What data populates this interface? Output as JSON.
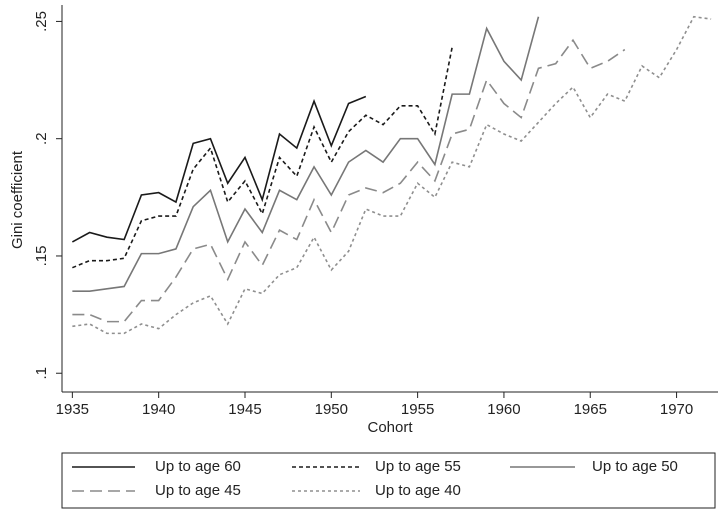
{
  "chart_data": {
    "type": "line",
    "x_label": "Cohort",
    "y_label": "Gini coefficient",
    "xlim": [
      1934.4,
      1972.4
    ],
    "ylim": [
      0.092,
      0.257
    ],
    "xticks": [
      1935,
      1940,
      1945,
      1950,
      1955,
      1960,
      1965,
      1970
    ],
    "yticks": [
      {
        "value": 0.1,
        "label": ".1"
      },
      {
        "value": 0.15,
        "label": ".15"
      },
      {
        "value": 0.2,
        "label": ".2"
      },
      {
        "value": 0.25,
        "label": ".25"
      }
    ],
    "grid": false,
    "legend": "bottom",
    "series": [
      {
        "name": "Up to age 60",
        "color": "#1a1a1a",
        "dash": "none",
        "x": [
          1935,
          1936,
          1937,
          1938,
          1939,
          1940,
          1941,
          1942,
          1943,
          1944,
          1945,
          1946,
          1947,
          1948,
          1949,
          1950,
          1951,
          1952
        ],
        "values": [
          0.156,
          0.16,
          0.158,
          0.157,
          0.176,
          0.177,
          0.173,
          0.198,
          0.2,
          0.181,
          0.192,
          0.174,
          0.202,
          0.196,
          0.216,
          0.197,
          0.215,
          0.218
        ]
      },
      {
        "name": "Up to age 55",
        "color": "#1a1a1a",
        "dash": "4,3",
        "x": [
          1935,
          1936,
          1937,
          1938,
          1939,
          1940,
          1941,
          1942,
          1943,
          1944,
          1945,
          1946,
          1947,
          1948,
          1949,
          1950,
          1951,
          1952,
          1953,
          1954,
          1955,
          1956,
          1957
        ],
        "values": [
          0.145,
          0.148,
          0.148,
          0.149,
          0.165,
          0.167,
          0.167,
          0.187,
          0.196,
          0.173,
          0.182,
          0.168,
          0.192,
          0.184,
          0.205,
          0.19,
          0.203,
          0.21,
          0.206,
          0.214,
          0.214,
          0.202,
          0.239
        ]
      },
      {
        "name": "Up to age 50",
        "color": "#777777",
        "dash": "none",
        "x": [
          1935,
          1936,
          1937,
          1938,
          1939,
          1940,
          1941,
          1942,
          1943,
          1944,
          1945,
          1946,
          1947,
          1948,
          1949,
          1950,
          1951,
          1952,
          1953,
          1954,
          1955,
          1956,
          1957,
          1958,
          1959,
          1960,
          1961,
          1962
        ],
        "values": [
          0.135,
          0.135,
          0.136,
          0.137,
          0.151,
          0.151,
          0.153,
          0.171,
          0.178,
          0.156,
          0.17,
          0.16,
          0.178,
          0.174,
          0.188,
          0.176,
          0.19,
          0.195,
          0.19,
          0.2,
          0.2,
          0.189,
          0.219,
          0.219,
          0.247,
          0.233,
          0.225,
          0.252
        ]
      },
      {
        "name": "Up to age 45",
        "color": "#8a8a8a",
        "dash": "12,6",
        "x": [
          1935,
          1936,
          1937,
          1938,
          1939,
          1940,
          1941,
          1942,
          1943,
          1944,
          1945,
          1946,
          1947,
          1948,
          1949,
          1950,
          1951,
          1952,
          1953,
          1954,
          1955,
          1956,
          1957,
          1958,
          1959,
          1960,
          1961,
          1962,
          1963,
          1964,
          1965,
          1966,
          1967
        ],
        "values": [
          0.125,
          0.125,
          0.122,
          0.122,
          0.131,
          0.131,
          0.141,
          0.153,
          0.155,
          0.14,
          0.156,
          0.146,
          0.161,
          0.157,
          0.174,
          0.16,
          0.176,
          0.179,
          0.177,
          0.181,
          0.19,
          0.182,
          0.202,
          0.204,
          0.225,
          0.215,
          0.209,
          0.23,
          0.232,
          0.242,
          0.23,
          0.233,
          0.238
        ]
      },
      {
        "name": "Up to age 40",
        "color": "#8f8f8f",
        "dash": "3,3",
        "x": [
          1935,
          1936,
          1937,
          1938,
          1939,
          1940,
          1941,
          1942,
          1943,
          1944,
          1945,
          1946,
          1947,
          1948,
          1949,
          1950,
          1951,
          1952,
          1953,
          1954,
          1955,
          1956,
          1957,
          1958,
          1959,
          1960,
          1961,
          1962,
          1963,
          1964,
          1965,
          1966,
          1967,
          1968,
          1969,
          1970,
          1971,
          1972
        ],
        "values": [
          0.12,
          0.121,
          0.117,
          0.117,
          0.121,
          0.119,
          0.125,
          0.13,
          0.133,
          0.121,
          0.136,
          0.134,
          0.142,
          0.145,
          0.158,
          0.144,
          0.152,
          0.17,
          0.167,
          0.167,
          0.181,
          0.175,
          0.19,
          0.188,
          0.206,
          0.202,
          0.199,
          0.207,
          0.215,
          0.222,
          0.209,
          0.219,
          0.216,
          0.231,
          0.226,
          0.238,
          0.252,
          0.251
        ]
      }
    ]
  }
}
